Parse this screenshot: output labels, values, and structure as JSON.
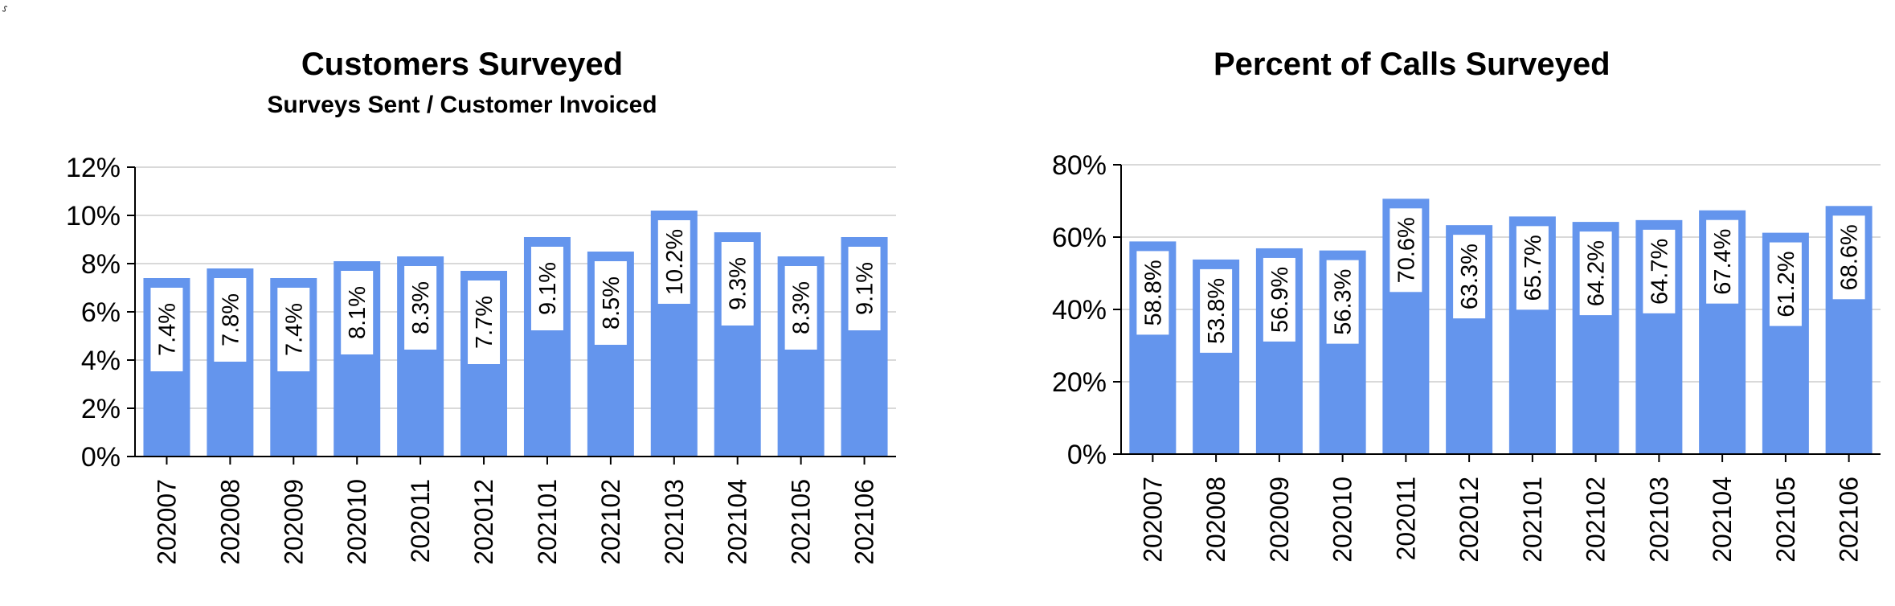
{
  "corner_glyph": "⸉",
  "chart_data": [
    {
      "type": "bar",
      "title": "Customers Surveyed",
      "subtitle": "Surveys Sent / Customer Invoiced",
      "xlabel": "",
      "ylabel": "",
      "categories": [
        "202007",
        "202008",
        "202009",
        "202010",
        "202011",
        "202012",
        "202101",
        "202102",
        "202103",
        "202104",
        "202105",
        "202106"
      ],
      "values": [
        7.4,
        7.8,
        7.4,
        8.1,
        8.3,
        7.7,
        9.1,
        8.5,
        10.2,
        9.3,
        8.3,
        9.1
      ],
      "value_labels": [
        "7.4%",
        "7.8%",
        "7.4%",
        "8.1%",
        "8.3%",
        "7.7%",
        "9.1%",
        "8.5%",
        "10.2%",
        "9.3%",
        "8.3%",
        "9.1%"
      ],
      "ylim": [
        0,
        12
      ],
      "yticks": [
        0,
        2,
        4,
        6,
        8,
        10,
        12
      ],
      "ytick_labels": [
        "0%",
        "2%",
        "4%",
        "6%",
        "8%",
        "10%",
        "12%"
      ],
      "grid": true,
      "bar_color": "#6495ED"
    },
    {
      "type": "bar",
      "title": "Percent of Calls Surveyed",
      "subtitle": "",
      "xlabel": "",
      "ylabel": "",
      "categories": [
        "202007",
        "202008",
        "202009",
        "202010",
        "202011",
        "202012",
        "202101",
        "202102",
        "202103",
        "202104",
        "202105",
        "202106"
      ],
      "values": [
        58.8,
        53.8,
        56.9,
        56.3,
        70.6,
        63.3,
        65.7,
        64.2,
        64.7,
        67.4,
        61.2,
        68.6
      ],
      "value_labels": [
        "58.8%",
        "53.8%",
        "56.9%",
        "56.3%",
        "70.6%",
        "63.3%",
        "65.7%",
        "64.2%",
        "64.7%",
        "67.4%",
        "61.2%",
        "68.6%"
      ],
      "ylim": [
        0,
        80
      ],
      "yticks": [
        0,
        20,
        40,
        60,
        80
      ],
      "ytick_labels": [
        "0%",
        "20%",
        "40%",
        "60%",
        "80%"
      ],
      "grid": true,
      "bar_color": "#6495ED"
    }
  ]
}
